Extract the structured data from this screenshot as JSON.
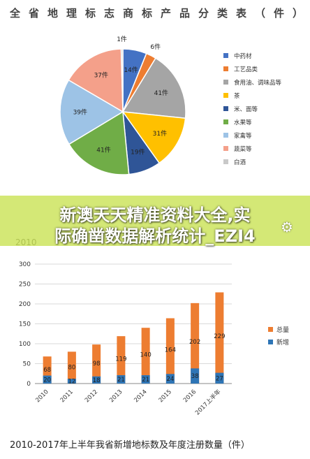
{
  "banner": {
    "line1": "新澳天天精准资料大全,实",
    "line2": "际确凿数据解析统计_EZI4",
    "year_fragment": "2010"
  },
  "caption": "2010-2017年上半年我省新增地标数及年度注册数量（件）",
  "chart_data": [
    {
      "type": "pie",
      "title": "全省地理标志商标产品分类表（件）",
      "legend_placement": "right",
      "slices": [
        {
          "name": "中药材",
          "value": 14,
          "label": "14件",
          "color": "#4472c4"
        },
        {
          "name": "工艺品类",
          "value": 6,
          "label": "6件",
          "color": "#ed7d31"
        },
        {
          "name": "食用油、调味品等",
          "value": 41,
          "label": "41件",
          "color": "#a5a5a5"
        },
        {
          "name": "茶",
          "value": 31,
          "label": "31件",
          "color": "#ffc000"
        },
        {
          "name": "米、面等",
          "value": 19,
          "label": "19件",
          "color": "#2f5597"
        },
        {
          "name": "水果等",
          "value": 41,
          "label": "41件",
          "color": "#70ad47"
        },
        {
          "name": "家禽等",
          "value": 39,
          "label": "39件",
          "color": "#9dc3e6"
        },
        {
          "name": "蔬菜等",
          "value": 37,
          "label": "37件",
          "color": "#f4a08a"
        },
        {
          "name": "白酒",
          "value": 1,
          "label": "1件",
          "color": "#c9c9c9"
        }
      ]
    },
    {
      "type": "bar",
      "stacked": false,
      "categories": [
        "2010",
        "2011",
        "2012",
        "2013",
        "2014",
        "2015",
        "2016",
        "2017上半年"
      ],
      "ylim": [
        0,
        300
      ],
      "yticks": [
        0,
        50,
        100,
        150,
        200,
        250,
        300
      ],
      "grid": true,
      "legend_placement": "right",
      "series": [
        {
          "name": "总量",
          "values": [
            68,
            80,
            98,
            119,
            140,
            164,
            202,
            229
          ],
          "color": "#ed7d31"
        },
        {
          "name": "新增",
          "values": [
            20,
            12,
            18,
            21,
            21,
            24,
            38,
            27
          ],
          "color": "#2e75b6"
        }
      ]
    }
  ]
}
